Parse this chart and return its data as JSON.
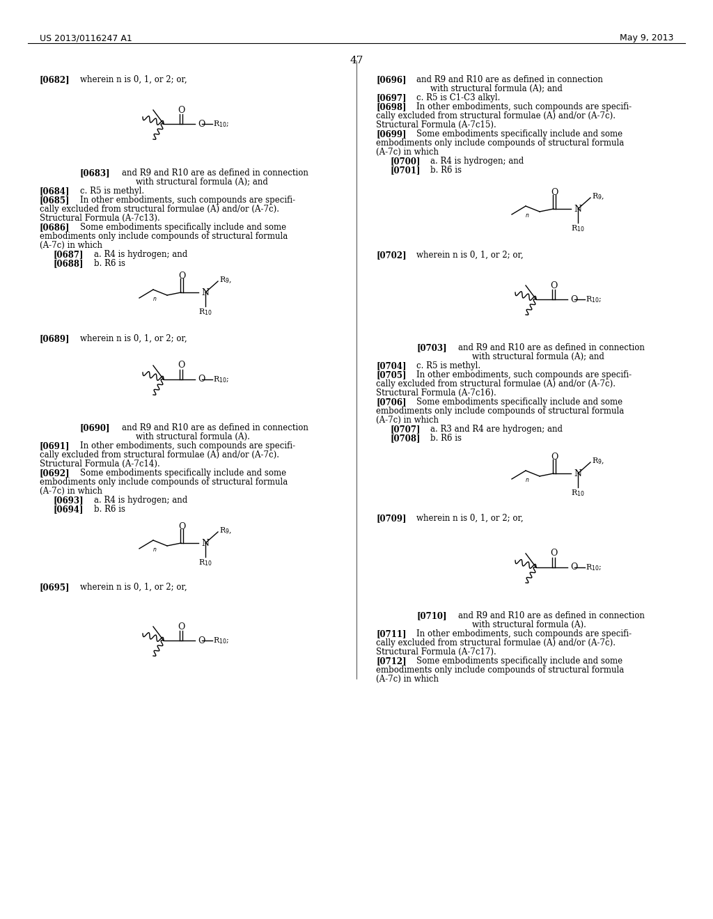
{
  "bg_color": "#ffffff",
  "header_left": "US 2013/0116247 A1",
  "header_right": "May 9, 2013",
  "page_number": "47",
  "figsize": [
    10.24,
    13.2
  ],
  "dpi": 100,
  "text_color": "#000000"
}
